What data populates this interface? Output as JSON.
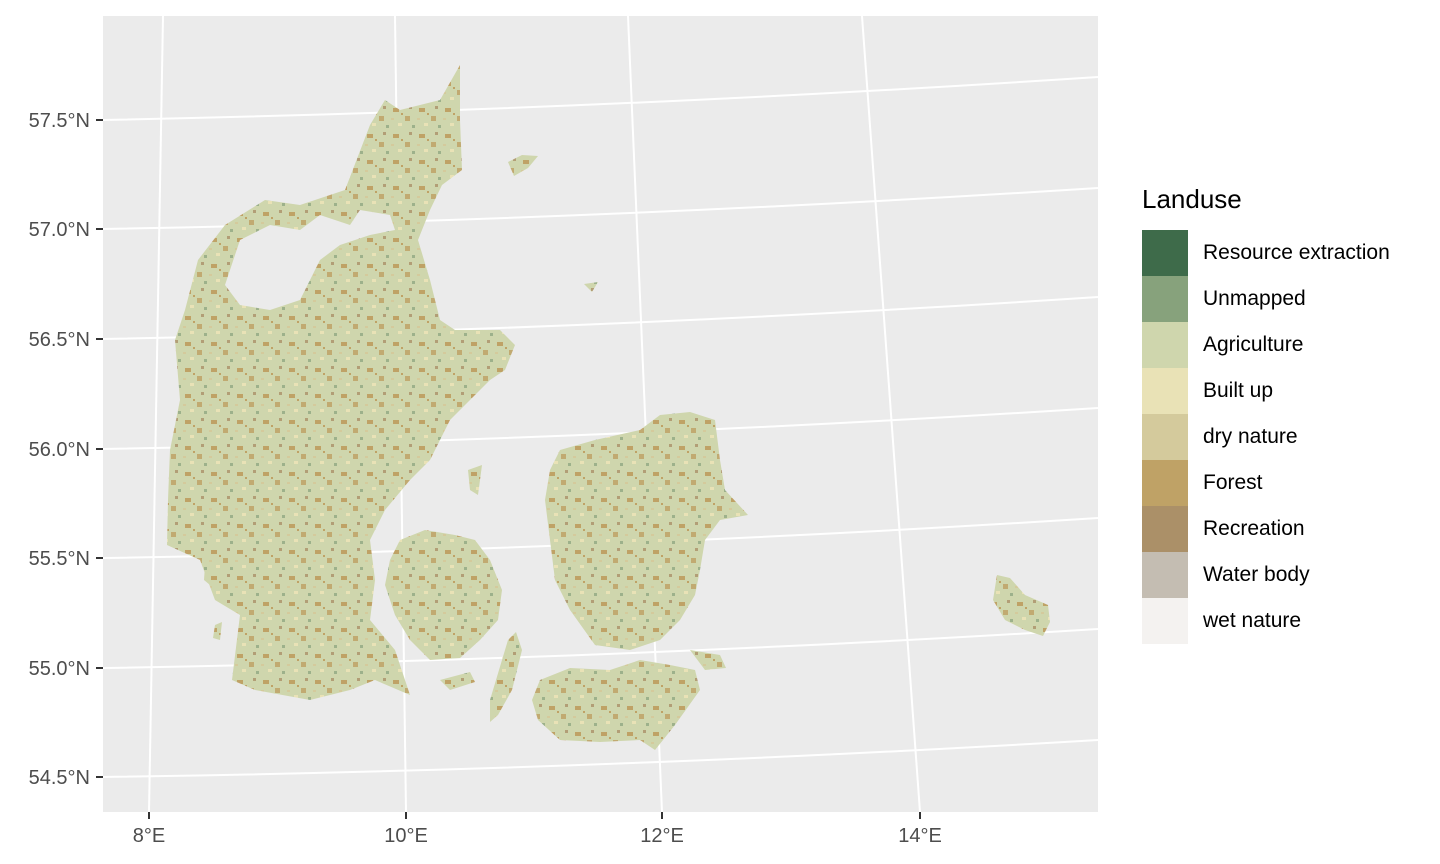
{
  "legend": {
    "title": "Landuse",
    "items": [
      {
        "label": "Resource extraction",
        "color": "#3e6b4a"
      },
      {
        "label": "Unmapped",
        "color": "#87a27c"
      },
      {
        "label": "Agriculture",
        "color": "#cfd6ad"
      },
      {
        "label": "Built up",
        "color": "#e9e2b6"
      },
      {
        "label": "dry nature",
        "color": "#d4ca9c"
      },
      {
        "label": "Forest",
        "color": "#bfa266"
      },
      {
        "label": "Recreation",
        "color": "#ab9068"
      },
      {
        "label": "Water body",
        "color": "#c4bdb2"
      },
      {
        "label": "wet nature",
        "color": "#f4f2f0"
      }
    ]
  },
  "axes": {
    "lat_labels": [
      "57.5°N",
      "57.0°N",
      "56.5°N",
      "56.0°N",
      "55.5°N",
      "55.0°N",
      "54.5°N"
    ],
    "lon_labels": [
      "8°E",
      "10°E",
      "12°E",
      "14°E"
    ]
  },
  "map": {
    "panel_color": "#ebebeb",
    "grid_color": "#ffffff",
    "regions": [
      "Jutland",
      "Vendsyssel",
      "Funen",
      "Zealand",
      "Lolland",
      "Falster",
      "Mors",
      "Samsø",
      "Læsø",
      "Anholt",
      "Als",
      "Langeland",
      "Møn",
      "Bornholm",
      "Ærø",
      "Fanø",
      "Rømø"
    ]
  }
}
